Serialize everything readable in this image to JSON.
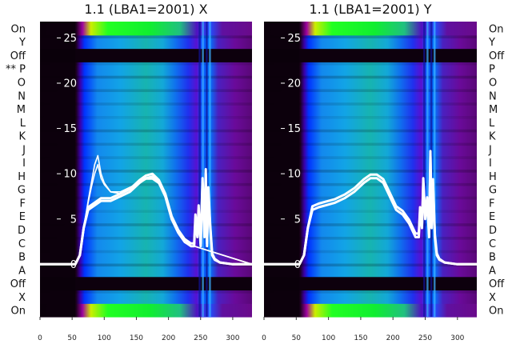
{
  "chart_data": [
    {
      "type": "heatmap",
      "title": "1.1 (LBA1=2001) X",
      "xticks": [
        0,
        50,
        100,
        150,
        200,
        250,
        300
      ],
      "yticks": [
        0,
        5,
        10,
        15,
        20,
        25
      ],
      "xlim": [
        0,
        330
      ],
      "ylim": [
        -5.8,
        26.8
      ],
      "row_labels": [
        "On",
        "X",
        "Off",
        "A",
        "B",
        "C",
        "D",
        "E",
        "F",
        "G",
        "H",
        "I",
        "J",
        "K",
        "L",
        "M",
        "N",
        "O",
        "** P",
        "Off",
        "Y",
        "On"
      ],
      "overlay_lines": [
        {
          "x": [
            0,
            55,
            62,
            68,
            75,
            85,
            95,
            110,
            125,
            140,
            155,
            165,
            175,
            185,
            195,
            205,
            215,
            225,
            235,
            240,
            242,
            245,
            247,
            250,
            253,
            256,
            258,
            260,
            262,
            265,
            268,
            272,
            280,
            300,
            330
          ],
          "y": [
            0,
            0,
            1,
            4,
            6,
            6.5,
            7,
            7,
            7.5,
            8,
            9,
            9.5,
            9.7,
            9,
            7.5,
            5,
            3.5,
            2.5,
            2,
            2,
            5,
            3,
            6,
            2,
            9,
            3,
            10,
            2,
            8,
            4,
            1,
            0.5,
            0.2,
            0,
            0
          ]
        },
        {
          "x": [
            0,
            55,
            62,
            68,
            75,
            85,
            95,
            110,
            125,
            140,
            155,
            165,
            175,
            185,
            195,
            205,
            215,
            225,
            235,
            240,
            242,
            245,
            247,
            250,
            253,
            256,
            258,
            260,
            262,
            265,
            268,
            272,
            280,
            300,
            330
          ],
          "y": [
            0,
            0,
            1,
            4,
            6.3,
            6.8,
            7.3,
            7.3,
            7.8,
            8.3,
            9.3,
            9.8,
            10,
            9.3,
            7.8,
            5.3,
            3.8,
            2.8,
            2.3,
            2.3,
            5.5,
            3.2,
            6.5,
            2.3,
            9.5,
            3.3,
            10.5,
            2.3,
            8.5,
            4.3,
            1.2,
            0.6,
            0.2,
            0,
            0
          ]
        },
        {
          "x": [
            0,
            55,
            62,
            68,
            75,
            80,
            85,
            90,
            95,
            100,
            110,
            125,
            140,
            155,
            165,
            175,
            185,
            195,
            205,
            215,
            225,
            235,
            240,
            330
          ],
          "y": [
            0,
            0,
            1,
            4,
            7,
            9,
            11,
            12,
            10,
            9,
            8,
            8,
            8.5,
            9,
            9.5,
            9.5,
            9,
            7.5,
            5,
            3.5,
            2.5,
            2,
            2,
            0
          ]
        },
        {
          "x": [
            0,
            55,
            62,
            68,
            75,
            80,
            85,
            90,
            95,
            100,
            110,
            125,
            140,
            155,
            165,
            175,
            185,
            195,
            205,
            215,
            225,
            235,
            240,
            330
          ],
          "y": [
            0,
            0,
            1,
            4,
            6.8,
            8.5,
            10,
            11,
            9.5,
            8.8,
            8,
            7.8,
            8.3,
            9,
            9.4,
            9.4,
            8.9,
            7.4,
            5,
            3.4,
            2.4,
            2,
            2,
            0
          ]
        }
      ]
    },
    {
      "type": "heatmap",
      "title": "1.1 (LBA1=2001) Y",
      "xticks": [
        0,
        50,
        100,
        150,
        200,
        250,
        300
      ],
      "yticks": [
        0,
        5,
        10,
        15,
        20,
        25
      ],
      "xlim": [
        0,
        330
      ],
      "ylim": [
        -5.8,
        26.8
      ],
      "row_labels": [
        "On",
        "X",
        "Off",
        "A",
        "B",
        "C",
        "D",
        "E",
        "F",
        "G",
        "H",
        "I",
        "J",
        "K",
        "L",
        "M",
        "N",
        "O",
        "P",
        "Off",
        "Y",
        "On"
      ],
      "overlay_lines": [
        {
          "x": [
            0,
            55,
            62,
            68,
            75,
            85,
            95,
            110,
            125,
            140,
            155,
            165,
            175,
            185,
            195,
            205,
            215,
            225,
            235,
            240,
            242,
            245,
            247,
            250,
            253,
            256,
            258,
            260,
            262,
            265,
            268,
            272,
            280,
            300,
            330
          ],
          "y": [
            0,
            0,
            1,
            4,
            6,
            6.3,
            6.5,
            6.8,
            7.3,
            8,
            9,
            9.5,
            9.5,
            9,
            7.5,
            6,
            5.5,
            4.5,
            3,
            3,
            6,
            4,
            9,
            5,
            7,
            3,
            12,
            4,
            9,
            3,
            1,
            0.5,
            0.2,
            0,
            0
          ]
        },
        {
          "x": [
            0,
            55,
            62,
            68,
            75,
            85,
            95,
            110,
            125,
            140,
            155,
            165,
            175,
            185,
            195,
            205,
            215,
            225,
            235,
            240,
            242,
            245,
            247,
            250,
            253,
            256,
            258,
            260,
            262,
            265,
            268,
            272,
            280,
            300,
            330
          ],
          "y": [
            0,
            0,
            1,
            4,
            6.4,
            6.7,
            6.9,
            7.2,
            7.7,
            8.4,
            9.4,
            9.9,
            9.9,
            9.4,
            7.9,
            6.4,
            5.9,
            4.9,
            3.4,
            3.4,
            6.3,
            4.3,
            9.5,
            5.3,
            7.4,
            3.3,
            12.5,
            4.3,
            9.4,
            3.3,
            1.2,
            0.6,
            0.2,
            0,
            0
          ]
        }
      ]
    }
  ]
}
